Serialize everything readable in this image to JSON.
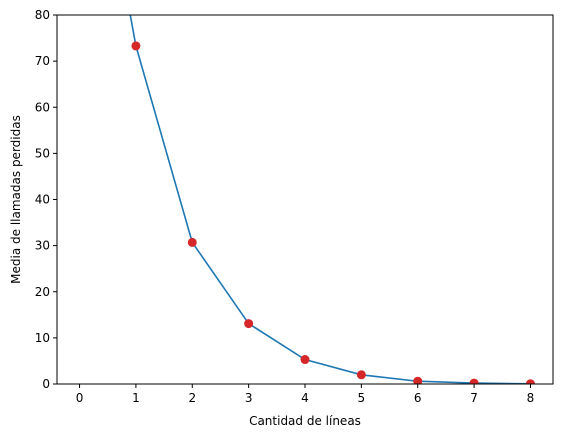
{
  "chart_data": {
    "type": "line",
    "title": "",
    "xlabel": "Cantidad de líneas",
    "ylabel": "Media de llamadas perdidas",
    "xlim": [
      -0.4,
      8.4
    ],
    "ylim": [
      0,
      80
    ],
    "xticks": [
      0,
      1,
      2,
      3,
      4,
      5,
      6,
      7,
      8
    ],
    "yticks": [
      0,
      10,
      20,
      30,
      40,
      50,
      60,
      70,
      80
    ],
    "grid": false,
    "legend": "none",
    "series": [
      {
        "style": "line",
        "color": "#1f77b4",
        "x": [
          0.9,
          1,
          2,
          3,
          4,
          5,
          6,
          7,
          8
        ],
        "y": [
          80,
          73.3,
          30.7,
          13.1,
          5.3,
          2.0,
          0.6,
          0.2,
          0.05
        ]
      },
      {
        "style": "markers",
        "color": "#d62728",
        "x": [
          1,
          2,
          3,
          4,
          5,
          6,
          7,
          8
        ],
        "y": [
          73.3,
          30.7,
          13.1,
          5.3,
          2.0,
          0.6,
          0.2,
          0.05
        ]
      }
    ]
  }
}
